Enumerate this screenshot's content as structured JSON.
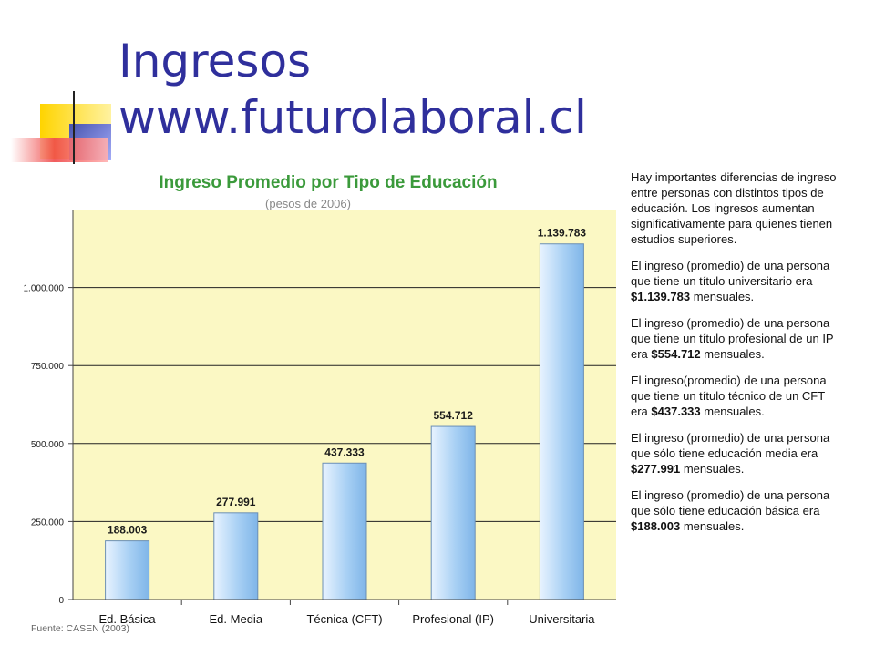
{
  "slide": {
    "title_line1": "Ingresos",
    "title_line2": "www.futurolaboral.cl"
  },
  "colors": {
    "title": "#2f2f9c",
    "chart_title": "#3b9a3b",
    "plot_background": "#fbf8c4",
    "bar": "#a8d0f4",
    "deco_yellow": "#ffd400",
    "deco_red": "#ef4a4a",
    "deco_blue": "#3344bb"
  },
  "chart_data": {
    "type": "bar",
    "title": "Ingreso Promedio por Tipo de Educación",
    "subtitle": "(pesos de 2006)",
    "categories": [
      "Ed. Básica",
      "Ed. Media",
      "Técnica (CFT)",
      "Profesional (IP)",
      "Universitaria"
    ],
    "values": [
      188003,
      277991,
      437333,
      554712,
      1139783
    ],
    "data_labels": [
      "188.003",
      "277.991",
      "437.333",
      "554.712",
      "1.139.783"
    ],
    "y_ticks": [
      0,
      250000,
      500000,
      750000,
      1000000
    ],
    "y_tick_labels": [
      "0",
      "250.000",
      "500.000",
      "750.000",
      "1.000.000"
    ],
    "ylim": [
      0,
      1250000
    ],
    "grid": true,
    "source": "Fuente: CASEN (2003)"
  },
  "sidebar": {
    "intro": "Hay importantes diferencias de ingreso  entre personas con distintos tipos de educación. Los ingresos aumentan significativamente para quienes tienen estudios superiores.",
    "items": [
      {
        "before": "El ingreso (promedio) de una persona que tiene un título universitario era ",
        "amount": "$1.139.783",
        "after": " mensuales."
      },
      {
        "before": "El ingreso (promedio) de una persona que tiene un título profesional de un IP era ",
        "amount": "$554.712",
        "after": " mensuales."
      },
      {
        "before": "El ingreso(promedio) de una persona que tiene un título técnico de un CFT era ",
        "amount": "$437.333",
        "after": " mensuales."
      },
      {
        "before": "El ingreso (promedio) de una persona que sólo tiene educación media  era ",
        "amount": "$277.991",
        "after": " mensuales."
      },
      {
        "before": "El ingreso (promedio) de una persona que sólo tiene educación básica  era ",
        "amount": "$188.003",
        "after": " mensuales."
      }
    ]
  }
}
